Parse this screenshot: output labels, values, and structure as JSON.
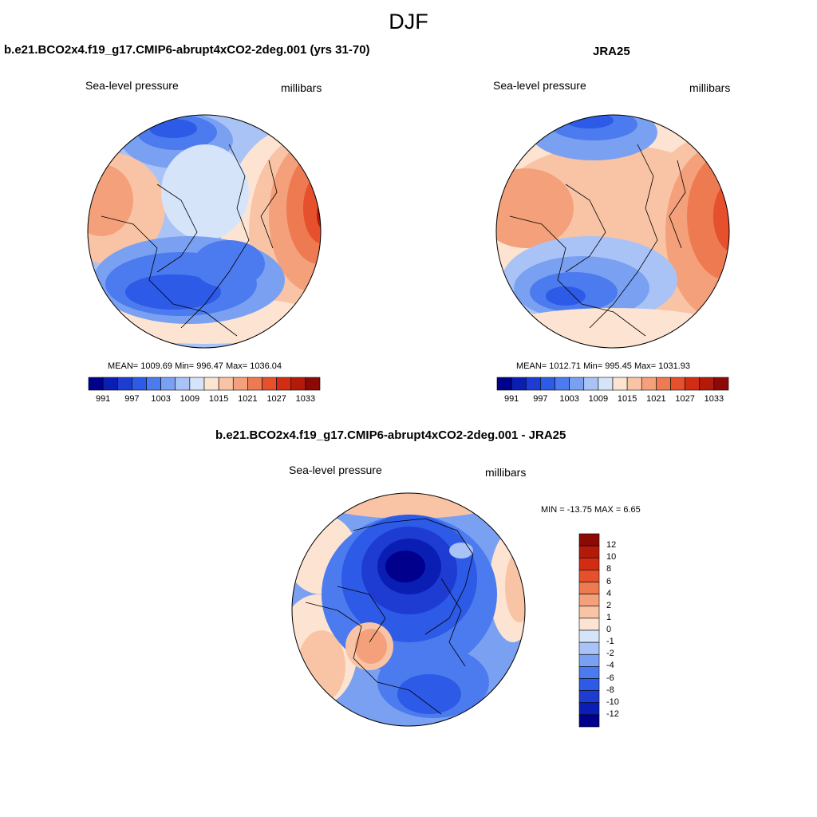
{
  "title": "DJF",
  "panels": [
    {
      "id": "model",
      "title": "b.e21.BCO2x4.f19_g17.CMIP6-abrupt4xCO2-2deg.001 (yrs 31-70)",
      "left_label": "Sea-level pressure",
      "right_label": "millibars",
      "stats": "MEAN= 1009.69  Min= 996.47  Max= 1036.04"
    },
    {
      "id": "obs",
      "title": "JRA25",
      "left_label": "Sea-level pressure",
      "right_label": "millibars",
      "stats": "MEAN= 1012.71  Min= 995.45  Max= 1031.93"
    },
    {
      "id": "diff",
      "title": "b.e21.BCO2x4.f19_g17.CMIP6-abrupt4xCO2-2deg.001 - JRA25",
      "left_label": "Sea-level pressure",
      "right_label": "millibars",
      "stats": "MIN = -13.75 MAX =   6.65"
    }
  ],
  "colorbar_abs": {
    "colors": [
      "#00008c",
      "#0a1eb4",
      "#1e3cd2",
      "#2d5ae6",
      "#4b7bee",
      "#7aa0f2",
      "#a9c3f6",
      "#d6e4fa",
      "#fde4d2",
      "#f9c4a5",
      "#f4a07a",
      "#ee7a52",
      "#e6502c",
      "#d22d14",
      "#b41a0a",
      "#8c0a06"
    ],
    "tick_labels": [
      "991",
      "997",
      "1003",
      "1009",
      "1015",
      "1021",
      "1027",
      "1033"
    ]
  },
  "colorbar_diff": {
    "colors": [
      "#00008c",
      "#0a1eb4",
      "#1e3cd2",
      "#2d5ae6",
      "#4b7bee",
      "#7aa0f2",
      "#a9c3f6",
      "#d6e4fa",
      "#fde4d2",
      "#f9c4a5",
      "#f4a07a",
      "#ee7a52",
      "#e6502c",
      "#d22d14",
      "#b41a0a",
      "#8c0a06"
    ],
    "tick_labels": [
      "12",
      "10",
      "8",
      "6",
      "4",
      "2",
      "1",
      "0",
      "-1",
      "-2",
      "-4",
      "-6",
      "-8",
      "-10",
      "-12"
    ]
  }
}
